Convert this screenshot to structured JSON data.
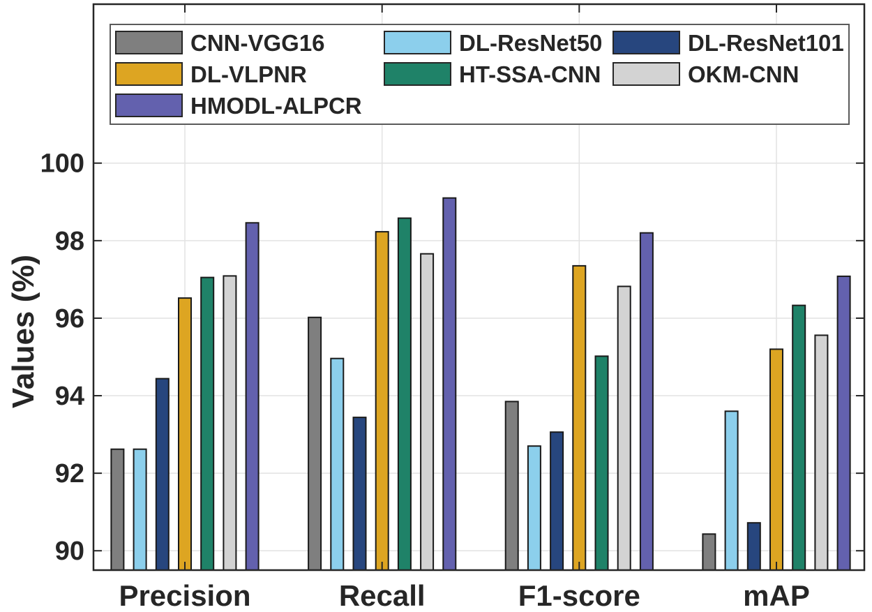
{
  "chart_data": {
    "type": "bar",
    "title": "",
    "xlabel": "",
    "ylabel": "Values (%)",
    "categories": [
      "Precision",
      "Recall",
      "F1-score",
      "mAP"
    ],
    "series": [
      {
        "name": "CNN-VGG16",
        "color": "#7F7F7F",
        "values": [
          92.62,
          96.02,
          93.85,
          90.43
        ]
      },
      {
        "name": "DL-ResNet50",
        "color": "#8CCFEC",
        "values": [
          92.62,
          94.96,
          92.7,
          93.6
        ]
      },
      {
        "name": "DL-ResNet101",
        "color": "#27467E",
        "values": [
          94.44,
          93.44,
          93.06,
          90.72
        ]
      },
      {
        "name": "DL-VLPNR",
        "color": "#DDA522",
        "values": [
          96.52,
          98.23,
          97.35,
          95.2
        ]
      },
      {
        "name": "HT-SSA-CNN",
        "color": "#1F8268",
        "values": [
          97.05,
          98.58,
          95.02,
          96.33
        ]
      },
      {
        "name": "OKM-CNN",
        "color": "#D3D3D3",
        "values": [
          97.09,
          97.66,
          96.82,
          95.56
        ]
      },
      {
        "name": "HMODL-ALPCR",
        "color": "#6361AE",
        "values": [
          98.46,
          99.1,
          98.2,
          97.08
        ]
      }
    ],
    "ylim": [
      89.5,
      104.1
    ],
    "yticks": [
      90,
      92,
      94,
      96,
      98,
      100
    ],
    "grid": true,
    "legend_position": "inside-top-left",
    "legend_columns": 3,
    "legend_column_layout": [
      [
        "CNN-VGG16",
        "DL-VLPNR",
        "HMODL-ALPCR"
      ],
      [
        "DL-ResNet50",
        "HT-SSA-CNN"
      ],
      [
        "DL-ResNet101",
        "OKM-CNN"
      ]
    ],
    "bar_edge_color": "#1A1A1A",
    "grid_color": "#E2E2E2",
    "axis_color": "#262626"
  }
}
